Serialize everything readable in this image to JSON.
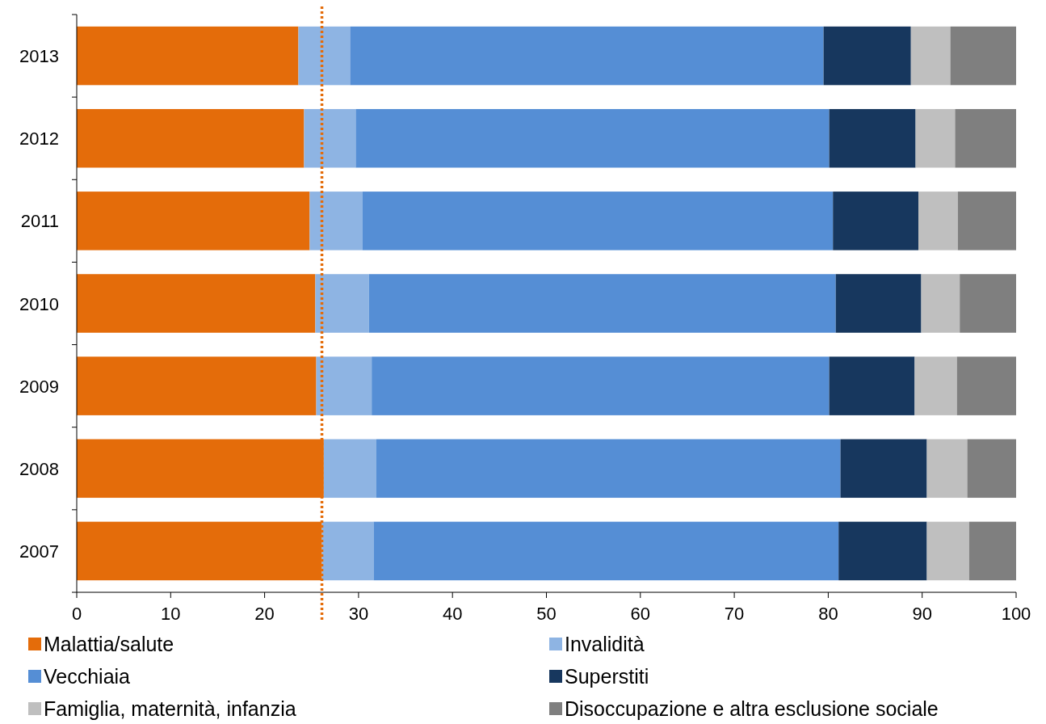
{
  "chart_data": {
    "type": "bar",
    "orientation": "horizontal",
    "stacked": true,
    "categories": [
      "2013",
      "2012",
      "2011",
      "2010",
      "2009",
      "2008",
      "2007"
    ],
    "series": [
      {
        "name": "Malattia/salute",
        "color": "#e46c0a",
        "values": [
          23.6,
          24.2,
          24.8,
          25.4,
          25.5,
          26.3,
          26.1
        ]
      },
      {
        "name": "Invalidità",
        "color": "#8eb4e3",
        "values": [
          5.5,
          5.5,
          5.6,
          5.7,
          5.9,
          5.6,
          5.5
        ]
      },
      {
        "name": "Vecchiaia",
        "color": "#558ed5",
        "values": [
          50.4,
          50.4,
          50.1,
          49.7,
          48.7,
          49.4,
          49.5
        ]
      },
      {
        "name": "Superstiti",
        "color": "#17375e",
        "values": [
          9.3,
          9.2,
          9.1,
          9.1,
          9.1,
          9.2,
          9.4
        ]
      },
      {
        "name": "Famiglia, maternità, infanzia",
        "color": "#bfbfbf",
        "values": [
          4.2,
          4.2,
          4.2,
          4.1,
          4.5,
          4.3,
          4.5
        ]
      },
      {
        "name": "Disoccupazione e altra esclusione sociale",
        "color": "#7f7f7f",
        "values": [
          7.0,
          6.5,
          6.2,
          6.0,
          6.3,
          5.2,
          5.0
        ]
      }
    ],
    "xlim": [
      0,
      100
    ],
    "xticks": [
      0,
      10,
      20,
      30,
      40,
      50,
      60,
      70,
      80,
      90,
      100
    ],
    "ref_lines": [
      {
        "axis": "x",
        "value": 26.1,
        "color": "#e46c0a",
        "line_style": "dotted"
      }
    ],
    "legend": "bottom",
    "grid": false
  }
}
